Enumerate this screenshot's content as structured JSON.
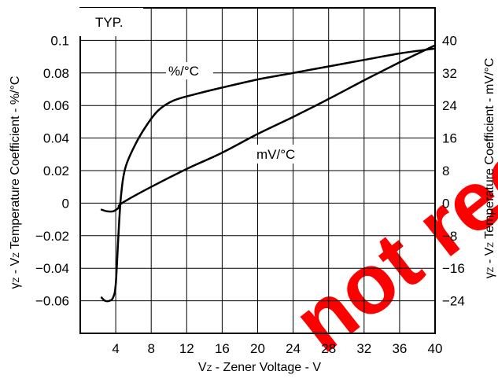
{
  "chart_data": {
    "type": "line",
    "note_label": "TYP.",
    "xlabel": "VZ - Zener Voltage - V",
    "xlabel_parts": {
      "sym": "V",
      "sub": "Z",
      "rest": " - Zener Voltage - V"
    },
    "ylabel_left": "γZ - VZ Temperature Coefficient - %/°C",
    "ylabel_left_parts": {
      "g": "γ",
      "gsub": "Z",
      "mid": " - V",
      "vsub": "Z",
      "rest": " Temperature Coefficient - %/°C"
    },
    "ylabel_right": "γZ - VZ Temperature Coefficient - mV/°C",
    "ylabel_right_parts": {
      "g": "γ",
      "gsub": "Z",
      "mid": " - V",
      "vsub": "Z",
      "rest": " Temperature Coefficient - mV/°C"
    },
    "xlim": [
      0,
      40
    ],
    "ylim_left": [
      -0.08,
      0.12
    ],
    "ylim_right": [
      -32,
      48
    ],
    "x_ticks": [
      "4",
      "8",
      "12",
      "16",
      "20",
      "24",
      "28",
      "32",
      "36",
      "40"
    ],
    "y_ticks_left": [
      "0.1",
      "0.08",
      "0.06",
      "0.04",
      "0.02",
      "0",
      "−0.02",
      "−0.04",
      "−0.06"
    ],
    "y_ticks_right": [
      "40",
      "32",
      "24",
      "16",
      "8",
      "0",
      "−8",
      "−16",
      "−24"
    ],
    "grid": true,
    "series": [
      {
        "name": "%/°C",
        "axis": "left",
        "color": "#000000",
        "points": [
          [
            2.4,
            -0.058
          ],
          [
            2.8,
            -0.06
          ],
          [
            3.3,
            -0.06
          ],
          [
            3.7,
            -0.058
          ],
          [
            4.0,
            -0.05
          ],
          [
            4.3,
            -0.02
          ],
          [
            4.6,
            0.005
          ],
          [
            5.1,
            0.022
          ],
          [
            6.2,
            0.036
          ],
          [
            7.5,
            0.048
          ],
          [
            8.8,
            0.057
          ],
          [
            10.5,
            0.063
          ],
          [
            13,
            0.067
          ],
          [
            16,
            0.071
          ],
          [
            20,
            0.076
          ],
          [
            24,
            0.08
          ],
          [
            28,
            0.084
          ],
          [
            32,
            0.088
          ],
          [
            36,
            0.092
          ],
          [
            40,
            0.095
          ]
        ]
      },
      {
        "name": "mV/°C",
        "axis": "right",
        "color": "#000000",
        "points": [
          [
            2.4,
            -1.6
          ],
          [
            3.0,
            -2.0
          ],
          [
            3.7,
            -2.0
          ],
          [
            4.3,
            -1.2
          ],
          [
            4.7,
            0.0
          ],
          [
            8,
            4.0
          ],
          [
            12,
            8.4
          ],
          [
            16,
            12.4
          ],
          [
            20,
            17.0
          ],
          [
            24,
            21.2
          ],
          [
            28,
            25.6
          ],
          [
            32,
            30.2
          ],
          [
            36,
            34.6
          ],
          [
            40,
            38.8
          ]
        ]
      }
    ]
  },
  "watermark": "not recommended for new"
}
